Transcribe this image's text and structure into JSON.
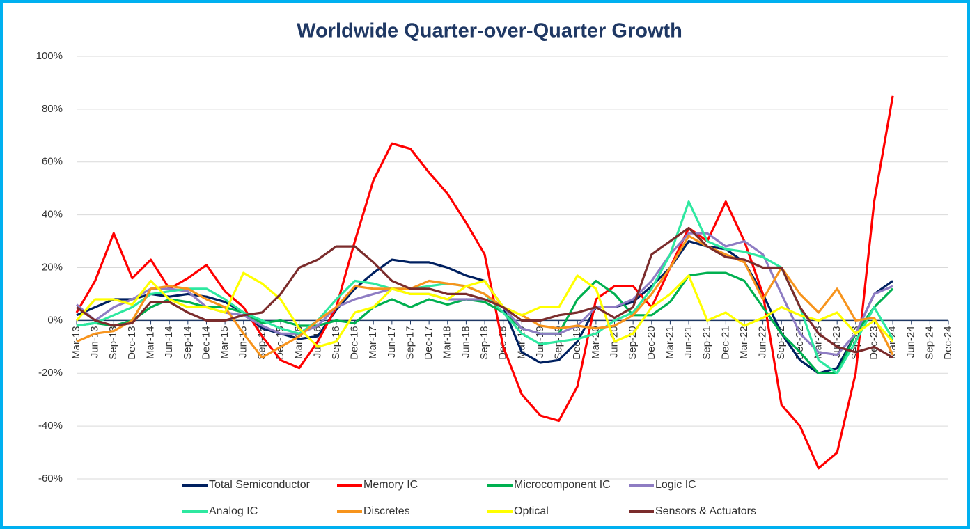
{
  "chart_data": {
    "type": "line",
    "title": "Worldwide Quarter-over-Quarter Growth",
    "categories": [
      "Mar-13",
      "Jun-13",
      "Sep-13",
      "Dec-13",
      "Mar-14",
      "Jun-14",
      "Sep-14",
      "Dec-14",
      "Mar-15",
      "Jun-15",
      "Sep-15",
      "Dec-15",
      "Mar-16",
      "Jun-16",
      "Sep-16",
      "Dec-16",
      "Mar-17",
      "Jun-17",
      "Sep-17",
      "Dec-17",
      "Mar-18",
      "Jun-18",
      "Sep-18",
      "Dec-18",
      "Mar-19",
      "Jun-19",
      "Sep-19",
      "Dec-19",
      "Mar-20",
      "Jun-20",
      "Sep-20",
      "Dec-20",
      "Mar-21",
      "Jun-21",
      "Sep-21",
      "Dec-21",
      "Mar-22",
      "Jun-22",
      "Sep-22",
      "Dec-22",
      "Mar-23",
      "Jun-23",
      "Sep-23",
      "Dec-23",
      "Mar-24",
      "Jun-24",
      "Sep-24",
      "Dec-24"
    ],
    "ylim": [
      -60,
      100
    ],
    "yticks": [
      {
        "value": -60,
        "label": "-60%"
      },
      {
        "value": -40,
        "label": "-40%"
      },
      {
        "value": -20,
        "label": "-20%"
      },
      {
        "value": 0,
        "label": "0%"
      },
      {
        "value": 20,
        "label": "20%"
      },
      {
        "value": 40,
        "label": "40%"
      },
      {
        "value": 60,
        "label": "60%"
      },
      {
        "value": 80,
        "label": "80%"
      },
      {
        "value": 100,
        "label": "100%"
      }
    ],
    "grid": true,
    "legend": "bottom",
    "series": [
      {
        "name": "Total Semiconductor",
        "color": "#002060",
        "values": [
          2,
          5,
          8,
          8,
          10,
          9,
          10,
          9,
          7,
          3,
          -3,
          -5,
          -7,
          -6,
          4,
          12,
          18,
          23,
          22,
          22,
          20,
          17,
          15,
          5,
          -12,
          -16,
          -15,
          -8,
          5,
          5,
          7,
          13,
          20,
          30,
          28,
          27,
          22,
          10,
          -5,
          -15,
          -20,
          -18,
          -5,
          10,
          15,
          null,
          null,
          null
        ]
      },
      {
        "name": "Memory IC",
        "color": "#ff0000",
        "values": [
          3,
          15,
          33,
          16,
          23,
          12,
          16,
          21,
          11,
          5,
          -6,
          -15,
          -18,
          -8,
          5,
          30,
          53,
          67,
          65,
          56,
          48,
          37,
          25,
          -10,
          -28,
          -36,
          -38,
          -25,
          8,
          13,
          13,
          5,
          20,
          35,
          30,
          45,
          30,
          10,
          -32,
          -40,
          -56,
          -50,
          -20,
          45,
          85,
          null,
          null,
          null
        ]
      },
      {
        "name": "Microcomponent IC",
        "color": "#00b050",
        "values": [
          -2,
          -1,
          -2,
          0,
          5,
          8,
          7,
          5,
          5,
          3,
          -1,
          0,
          -2,
          -2,
          0,
          -1,
          5,
          8,
          5,
          8,
          6,
          8,
          7,
          3,
          -3,
          -5,
          -5,
          8,
          15,
          10,
          2,
          2,
          7,
          17,
          18,
          18,
          15,
          5,
          -5,
          -12,
          -20,
          -20,
          -5,
          5,
          12,
          null,
          null,
          null
        ]
      },
      {
        "name": "Logic IC",
        "color": "#8e7cc3",
        "values": [
          6,
          0,
          5,
          8,
          12,
          12,
          11,
          5,
          3,
          2,
          -2,
          -5,
          -5,
          -2,
          5,
          8,
          10,
          12,
          10,
          10,
          8,
          8,
          8,
          5,
          -3,
          -5,
          -5,
          -2,
          5,
          5,
          8,
          15,
          25,
          33,
          33,
          28,
          30,
          25,
          10,
          -5,
          -12,
          -13,
          -5,
          10,
          13,
          null,
          null,
          null
        ]
      },
      {
        "name": "Analog IC",
        "color": "#2ee8a0",
        "values": [
          -2,
          -1,
          2,
          5,
          10,
          11,
          12,
          12,
          8,
          3,
          0,
          -3,
          -5,
          0,
          8,
          15,
          14,
          12,
          12,
          13,
          14,
          13,
          10,
          3,
          -5,
          -9,
          -8,
          -7,
          -5,
          0,
          3,
          12,
          25,
          45,
          30,
          27,
          26,
          24,
          20,
          5,
          -15,
          -20,
          -8,
          5,
          -7,
          null,
          null,
          null
        ]
      },
      {
        "name": "Discretes",
        "color": "#f7941d",
        "values": [
          -8,
          -5,
          -4,
          0,
          12,
          13,
          12,
          8,
          5,
          -5,
          -14,
          -10,
          -6,
          0,
          5,
          13,
          12,
          12,
          12,
          15,
          14,
          13,
          10,
          5,
          2,
          -2,
          -3,
          -2,
          -3,
          -2,
          2,
          10,
          20,
          32,
          28,
          25,
          22,
          8,
          20,
          10,
          3,
          12,
          0,
          1,
          -13,
          null,
          null,
          null
        ]
      },
      {
        "name": "Optical",
        "color": "#ffff00",
        "values": [
          0,
          8,
          8,
          6,
          15,
          8,
          5,
          5,
          3,
          18,
          14,
          8,
          -3,
          -10,
          -8,
          3,
          5,
          12,
          10,
          10,
          8,
          13,
          15,
          5,
          2,
          5,
          5,
          17,
          12,
          -8,
          -5,
          5,
          10,
          17,
          0,
          3,
          -2,
          1,
          5,
          2,
          0,
          3,
          -5,
          0,
          -8,
          null,
          null,
          null
        ]
      },
      {
        "name": "Sensors & Actuators",
        "color": "#7b2c2c",
        "values": [
          5,
          0,
          -2,
          -1,
          7,
          7,
          3,
          0,
          0,
          2,
          3,
          10,
          20,
          23,
          28,
          28,
          22,
          15,
          12,
          12,
          10,
          10,
          8,
          5,
          0,
          0,
          2,
          3,
          5,
          1,
          5,
          25,
          30,
          35,
          28,
          24,
          23,
          20,
          20,
          5,
          -5,
          -10,
          -12,
          -10,
          -14,
          null,
          null,
          null
        ]
      }
    ]
  }
}
